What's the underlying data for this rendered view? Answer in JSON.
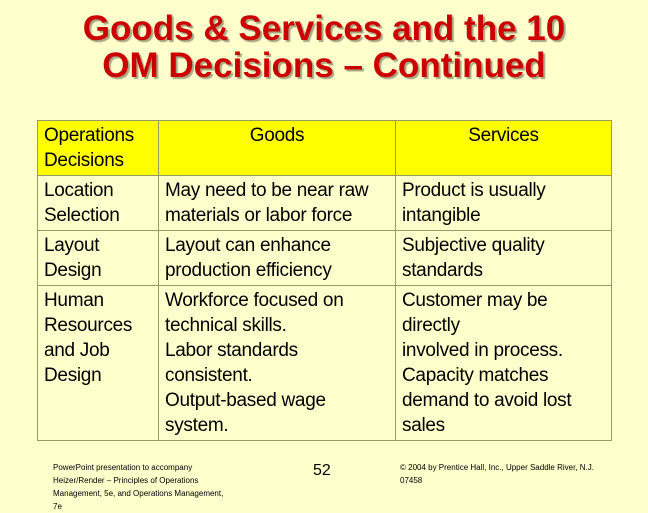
{
  "title": {
    "line1": "Goods & Services and the 10",
    "line2": "OM Decisions – Continued"
  },
  "table": {
    "headers": {
      "col1": [
        "Operations",
        "Decisions"
      ],
      "col2": "Goods",
      "col3": "Services"
    },
    "rows": [
      {
        "decision": [
          "Location",
          "Selection"
        ],
        "goods": [
          "May need to be near raw",
          "materials or labor force"
        ],
        "services": [
          "Product is usually",
          "intangible"
        ]
      },
      {
        "decision": [
          "Layout",
          "Design"
        ],
        "goods": [
          "Layout can enhance",
          "production efficiency"
        ],
        "services": [
          "Subjective quality",
          "standards"
        ]
      },
      {
        "decision": [
          "Human",
          "Resources",
          "and Job",
          "Design"
        ],
        "goods": [
          "Workforce focused on",
          "technical skills.",
          "Labor standards consistent.",
          "Output-based wage system."
        ],
        "services": [
          "Customer may be directly",
          "involved in process.",
          "Capacity matches",
          "demand to avoid lost",
          "sales"
        ]
      }
    ]
  },
  "footer": {
    "left": [
      "PowerPoint presentation to accompany",
      "Heizer/Render – Principles of Operations",
      "Management, 5e, and Operations Management,",
      "7e"
    ],
    "page_number": "52",
    "right": [
      "© 2004 by Prentice Hall, Inc., Upper Saddle River, N.J.",
      "07458"
    ]
  }
}
